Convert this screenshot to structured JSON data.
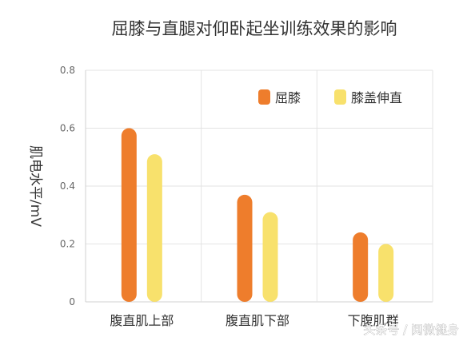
{
  "chart_data": {
    "type": "bar",
    "title": "屈膝与直腿对仰卧起坐训练效果的影响",
    "ylabel": "肌电水平/mV",
    "xlabel": "",
    "categories": [
      "腹直肌上部",
      "腹直肌下部",
      "下腹肌群"
    ],
    "series": [
      {
        "name": "屈膝",
        "values": [
          0.6,
          0.37,
          0.24
        ],
        "color": "#ee7d2c"
      },
      {
        "name": "膝盖伸直",
        "values": [
          0.51,
          0.31,
          0.2
        ],
        "color": "#f8e16c"
      }
    ],
    "ylim": [
      0,
      0.8
    ],
    "yticks": [
      "0",
      "0.2",
      "0.4",
      "0.6",
      "0.8"
    ],
    "grid": true,
    "legend_position": "top-right"
  },
  "watermark": "头条号 / 阅微健身"
}
